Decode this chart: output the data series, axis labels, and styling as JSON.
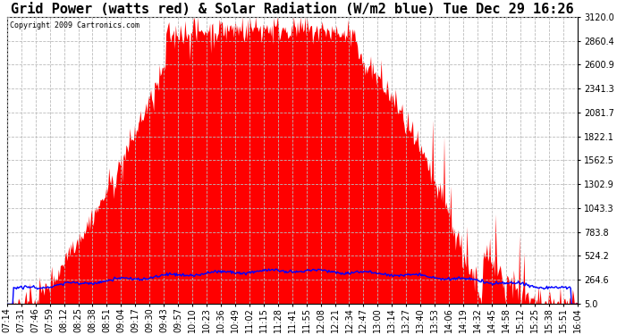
{
  "title": "Grid Power (watts red) & Solar Radiation (W/m2 blue) Tue Dec 29 16:26",
  "copyright_text": "Copyright 2009 Cartronics.com",
  "yticks": [
    5.0,
    264.6,
    524.2,
    783.8,
    1043.3,
    1302.9,
    1562.5,
    1822.1,
    2081.7,
    2341.3,
    2600.9,
    2860.4,
    3120.0
  ],
  "ymin": 5.0,
  "ymax": 3120.0,
  "bg_color": "#ffffff",
  "plot_bg_color": "#ffffff",
  "grid_color": "#aaaaaa",
  "fill_red_color": "#ff0000",
  "line_blue_color": "#0000ff",
  "title_fontsize": 11,
  "tick_fontsize": 7,
  "xtick_labels": [
    "07:14",
    "07:31",
    "07:46",
    "07:59",
    "08:12",
    "08:25",
    "08:38",
    "08:51",
    "09:04",
    "09:17",
    "09:30",
    "09:43",
    "09:57",
    "10:10",
    "10:23",
    "10:36",
    "10:49",
    "11:02",
    "11:15",
    "11:28",
    "11:41",
    "11:55",
    "12:08",
    "12:21",
    "12:34",
    "12:47",
    "13:00",
    "13:14",
    "13:27",
    "13:40",
    "13:53",
    "14:06",
    "14:19",
    "14:32",
    "14:45",
    "14:58",
    "15:12",
    "15:25",
    "15:38",
    "15:51",
    "16:04"
  ],
  "n_xticks": 41,
  "n_points": 600
}
